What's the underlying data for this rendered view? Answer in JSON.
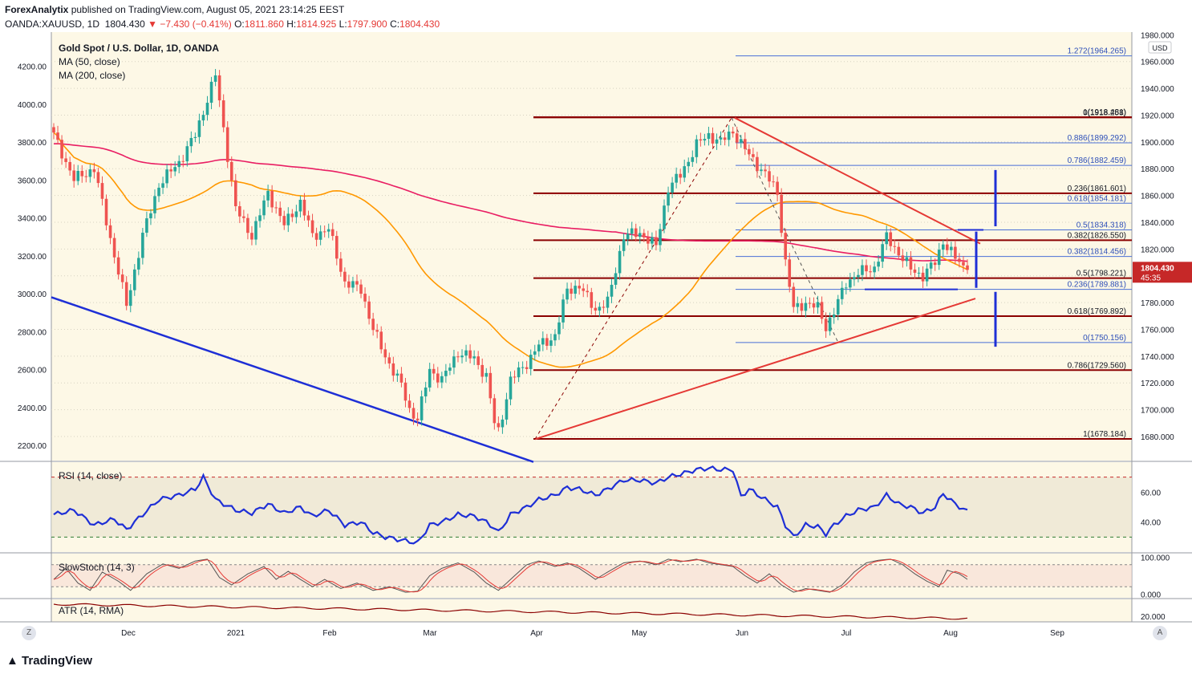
{
  "header": {
    "publisher": "ForexAnalytix",
    "published_text": "published on TradingView.com, August 05, 2021 23:14:25 EEST",
    "symbol": "OANDA:XAUUSD, 1D",
    "last": "1804.430",
    "change": "▼ −7.430 (−0.41%)",
    "o_label": "O:",
    "o_val": "1811.860",
    "h_label": "H:",
    "h_val": "1814.925",
    "l_label": "L:",
    "l_val": "1797.900",
    "c_label": "C:",
    "c_val": "1804.430"
  },
  "legend": {
    "title": "Gold Spot / U.S. Dollar, 1D, OANDA",
    "ma50": "MA (50, close)",
    "ma200": "MA (200, close)",
    "rsi": "RSI (14, close)",
    "stoch": "SlowStoch (14, 3)",
    "atr": "ATR (14, RMA)"
  },
  "colors": {
    "background": "#fdf8e6",
    "up": "#26a69a",
    "down": "#ef5350",
    "ma50": "#ff9800",
    "ma200": "#e91e63",
    "fib": "#8b0000",
    "trend_blue": "#1e2fd6",
    "trend_red": "#e53935",
    "rsi": "#1e2fd6"
  },
  "footer": {
    "brand": "TradingView",
    "corner_left": "Z",
    "corner_right": "A"
  },
  "chart_data": {
    "type": "candlestick",
    "title": "Gold Spot / U.S. Dollar, 1D, OANDA",
    "x_ticks": [
      "Dec",
      "2021",
      "Feb",
      "Mar",
      "Apr",
      "May",
      "Jun",
      "Jul",
      "Aug",
      "Sep"
    ],
    "left_axis": {
      "ticks": [
        "4200.00",
        "4000.00",
        "3800.00",
        "3600.00",
        "3400.00",
        "3200.00",
        "3000.00",
        "2800.00",
        "2600.00",
        "2400.00",
        "2200.00"
      ],
      "range": [
        2120,
        4380
      ]
    },
    "right_axis": {
      "unit": "USD",
      "ticks": [
        "1980.000",
        "1960.000",
        "1940.000",
        "1920.000",
        "1900.000",
        "1880.000",
        "1860.000",
        "1840.000",
        "1820.000",
        "1800.000",
        "1780.000",
        "1760.000",
        "1740.000",
        "1720.000",
        "1700.000",
        "1680.000"
      ],
      "range": [
        1662,
        1982
      ]
    },
    "last_price": {
      "label": "1804.430",
      "countdown": "45:35"
    },
    "fib_dark": [
      {
        "label": "1(1918.481)",
        "price": 1918.481
      },
      {
        "label": "0(1918.258)",
        "price": 1918.258
      },
      {
        "label": "0.236(1861.601)",
        "price": 1861.601
      },
      {
        "label": "0.382(1826.550)",
        "price": 1826.55
      },
      {
        "label": "0.5(1798.221)",
        "price": 1798.221
      },
      {
        "label": "0.618(1769.892)",
        "price": 1769.892
      },
      {
        "label": "0.786(1729.560)",
        "price": 1729.56
      },
      {
        "label": "1(1678.184)",
        "price": 1678.184
      }
    ],
    "fib_blue": [
      {
        "label": "1.272(1964.265)",
        "price": 1964.265
      },
      {
        "label": "0.886(1899.292)",
        "price": 1899.292
      },
      {
        "label": "0.786(1882.459)",
        "price": 1882.459
      },
      {
        "label": "0.618(1854.181)",
        "price": 1854.181
      },
      {
        "label": "0.5(1834.318)",
        "price": 1834.318
      },
      {
        "label": "0.382(1814.456)",
        "price": 1814.456
      },
      {
        "label": "0.236(1789.881)",
        "price": 1789.881
      },
      {
        "label": "0(1750.156)",
        "price": 1750.156
      }
    ],
    "rsi": {
      "ticks": [
        "60.00",
        "40.00"
      ],
      "range": [
        20,
        80
      ],
      "bands": [
        30,
        70
      ]
    },
    "stoch": {
      "ticks": [
        "100.000",
        "0.000"
      ],
      "range": [
        -10,
        110
      ],
      "bands": [
        20,
        80
      ]
    },
    "atr": {
      "ticks": [
        "20.000"
      ]
    },
    "close_keypoints": [
      [
        0,
        1905
      ],
      [
        5,
        1872
      ],
      [
        10,
        1880
      ],
      [
        15,
        1815
      ],
      [
        18,
        1778
      ],
      [
        22,
        1830
      ],
      [
        26,
        1868
      ],
      [
        31,
        1885
      ],
      [
        35,
        1905
      ],
      [
        40,
        1950
      ],
      [
        45,
        1850
      ],
      [
        49,
        1830
      ],
      [
        53,
        1862
      ],
      [
        57,
        1838
      ],
      [
        61,
        1855
      ],
      [
        64,
        1830
      ],
      [
        68,
        1835
      ],
      [
        72,
        1795
      ],
      [
        76,
        1790
      ],
      [
        79,
        1760
      ],
      [
        82,
        1740
      ],
      [
        86,
        1718
      ],
      [
        88,
        1700
      ],
      [
        90,
        1693
      ],
      [
        93,
        1730
      ],
      [
        96,
        1722
      ],
      [
        100,
        1743
      ],
      [
        104,
        1738
      ],
      [
        107,
        1725
      ],
      [
        109,
        1690
      ],
      [
        110,
        1684
      ],
      [
        113,
        1722
      ],
      [
        117,
        1735
      ],
      [
        120,
        1748
      ],
      [
        124,
        1755
      ],
      [
        127,
        1790
      ],
      [
        130,
        1792
      ],
      [
        134,
        1775
      ],
      [
        137,
        1780
      ],
      [
        141,
        1830
      ],
      [
        145,
        1832
      ],
      [
        149,
        1822
      ],
      [
        152,
        1866
      ],
      [
        155,
        1875
      ],
      [
        159,
        1898
      ],
      [
        162,
        1905
      ],
      [
        165,
        1900
      ],
      [
        168,
        1908
      ],
      [
        172,
        1890
      ],
      [
        176,
        1876
      ],
      [
        179,
        1862
      ],
      [
        181,
        1810
      ],
      [
        183,
        1775
      ],
      [
        186,
        1780
      ],
      [
        189,
        1776
      ],
      [
        191,
        1762
      ],
      [
        193,
        1773
      ],
      [
        196,
        1795
      ],
      [
        199,
        1802
      ],
      [
        203,
        1806
      ],
      [
        206,
        1829
      ],
      [
        209,
        1817
      ],
      [
        212,
        1805
      ],
      [
        215,
        1800
      ],
      [
        218,
        1810
      ],
      [
        220,
        1826
      ],
      [
        223,
        1813
      ],
      [
        226,
        1804
      ]
    ],
    "rsi_keypoints": [
      [
        0,
        45
      ],
      [
        5,
        48
      ],
      [
        10,
        38
      ],
      [
        15,
        42
      ],
      [
        18,
        35
      ],
      [
        22,
        45
      ],
      [
        26,
        55
      ],
      [
        31,
        58
      ],
      [
        35,
        62
      ],
      [
        37,
        70
      ],
      [
        40,
        55
      ],
      [
        45,
        48
      ],
      [
        49,
        46
      ],
      [
        53,
        52
      ],
      [
        57,
        46
      ],
      [
        61,
        50
      ],
      [
        64,
        44
      ],
      [
        68,
        48
      ],
      [
        72,
        38
      ],
      [
        76,
        40
      ],
      [
        79,
        33
      ],
      [
        82,
        30
      ],
      [
        86,
        28
      ],
      [
        88,
        27
      ],
      [
        90,
        26
      ],
      [
        93,
        38
      ],
      [
        96,
        40
      ],
      [
        100,
        45
      ],
      [
        104,
        44
      ],
      [
        107,
        40
      ],
      [
        109,
        36
      ],
      [
        110,
        33
      ],
      [
        113,
        45
      ],
      [
        117,
        50
      ],
      [
        120,
        55
      ],
      [
        124,
        58
      ],
      [
        127,
        63
      ],
      [
        130,
        62
      ],
      [
        134,
        58
      ],
      [
        137,
        62
      ],
      [
        141,
        68
      ],
      [
        145,
        68
      ],
      [
        149,
        66
      ],
      [
        152,
        70
      ],
      [
        155,
        72
      ],
      [
        159,
        75
      ],
      [
        162,
        76
      ],
      [
        165,
        75
      ],
      [
        168,
        75
      ],
      [
        170,
        57
      ],
      [
        172,
        62
      ],
      [
        176,
        55
      ],
      [
        179,
        50
      ],
      [
        181,
        38
      ],
      [
        183,
        30
      ],
      [
        186,
        38
      ],
      [
        189,
        37
      ],
      [
        191,
        32
      ],
      [
        193,
        38
      ],
      [
        196,
        44
      ],
      [
        199,
        48
      ],
      [
        203,
        50
      ],
      [
        206,
        58
      ],
      [
        209,
        52
      ],
      [
        212,
        50
      ],
      [
        215,
        46
      ],
      [
        218,
        50
      ],
      [
        220,
        59
      ],
      [
        223,
        52
      ],
      [
        226,
        47
      ]
    ],
    "stoch_keypoints": [
      [
        0,
        40
      ],
      [
        3,
        70
      ],
      [
        6,
        30
      ],
      [
        9,
        10
      ],
      [
        12,
        60
      ],
      [
        16,
        35
      ],
      [
        19,
        10
      ],
      [
        23,
        55
      ],
      [
        27,
        82
      ],
      [
        31,
        70
      ],
      [
        35,
        90
      ],
      [
        38,
        95
      ],
      [
        41,
        45
      ],
      [
        44,
        25
      ],
      [
        48,
        55
      ],
      [
        52,
        75
      ],
      [
        55,
        40
      ],
      [
        58,
        62
      ],
      [
        61,
        40
      ],
      [
        64,
        20
      ],
      [
        67,
        40
      ],
      [
        71,
        15
      ],
      [
        75,
        30
      ],
      [
        79,
        10
      ],
      [
        83,
        20
      ],
      [
        87,
        5
      ],
      [
        90,
        8
      ],
      [
        93,
        50
      ],
      [
        96,
        70
      ],
      [
        100,
        85
      ],
      [
        104,
        60
      ],
      [
        107,
        30
      ],
      [
        110,
        10
      ],
      [
        113,
        40
      ],
      [
        117,
        80
      ],
      [
        120,
        90
      ],
      [
        124,
        75
      ],
      [
        127,
        85
      ],
      [
        130,
        70
      ],
      [
        134,
        40
      ],
      [
        137,
        60
      ],
      [
        141,
        85
      ],
      [
        145,
        90
      ],
      [
        149,
        80
      ],
      [
        152,
        95
      ],
      [
        155,
        88
      ],
      [
        159,
        95
      ],
      [
        162,
        85
      ],
      [
        165,
        80
      ],
      [
        168,
        75
      ],
      [
        171,
        50
      ],
      [
        174,
        30
      ],
      [
        177,
        55
      ],
      [
        180,
        25
      ],
      [
        183,
        5
      ],
      [
        186,
        15
      ],
      [
        189,
        10
      ],
      [
        192,
        5
      ],
      [
        195,
        25
      ],
      [
        198,
        60
      ],
      [
        201,
        85
      ],
      [
        204,
        92
      ],
      [
        207,
        95
      ],
      [
        210,
        80
      ],
      [
        213,
        55
      ],
      [
        216,
        35
      ],
      [
        219,
        20
      ],
      [
        221,
        65
      ],
      [
        224,
        55
      ],
      [
        226,
        40
      ]
    ]
  }
}
